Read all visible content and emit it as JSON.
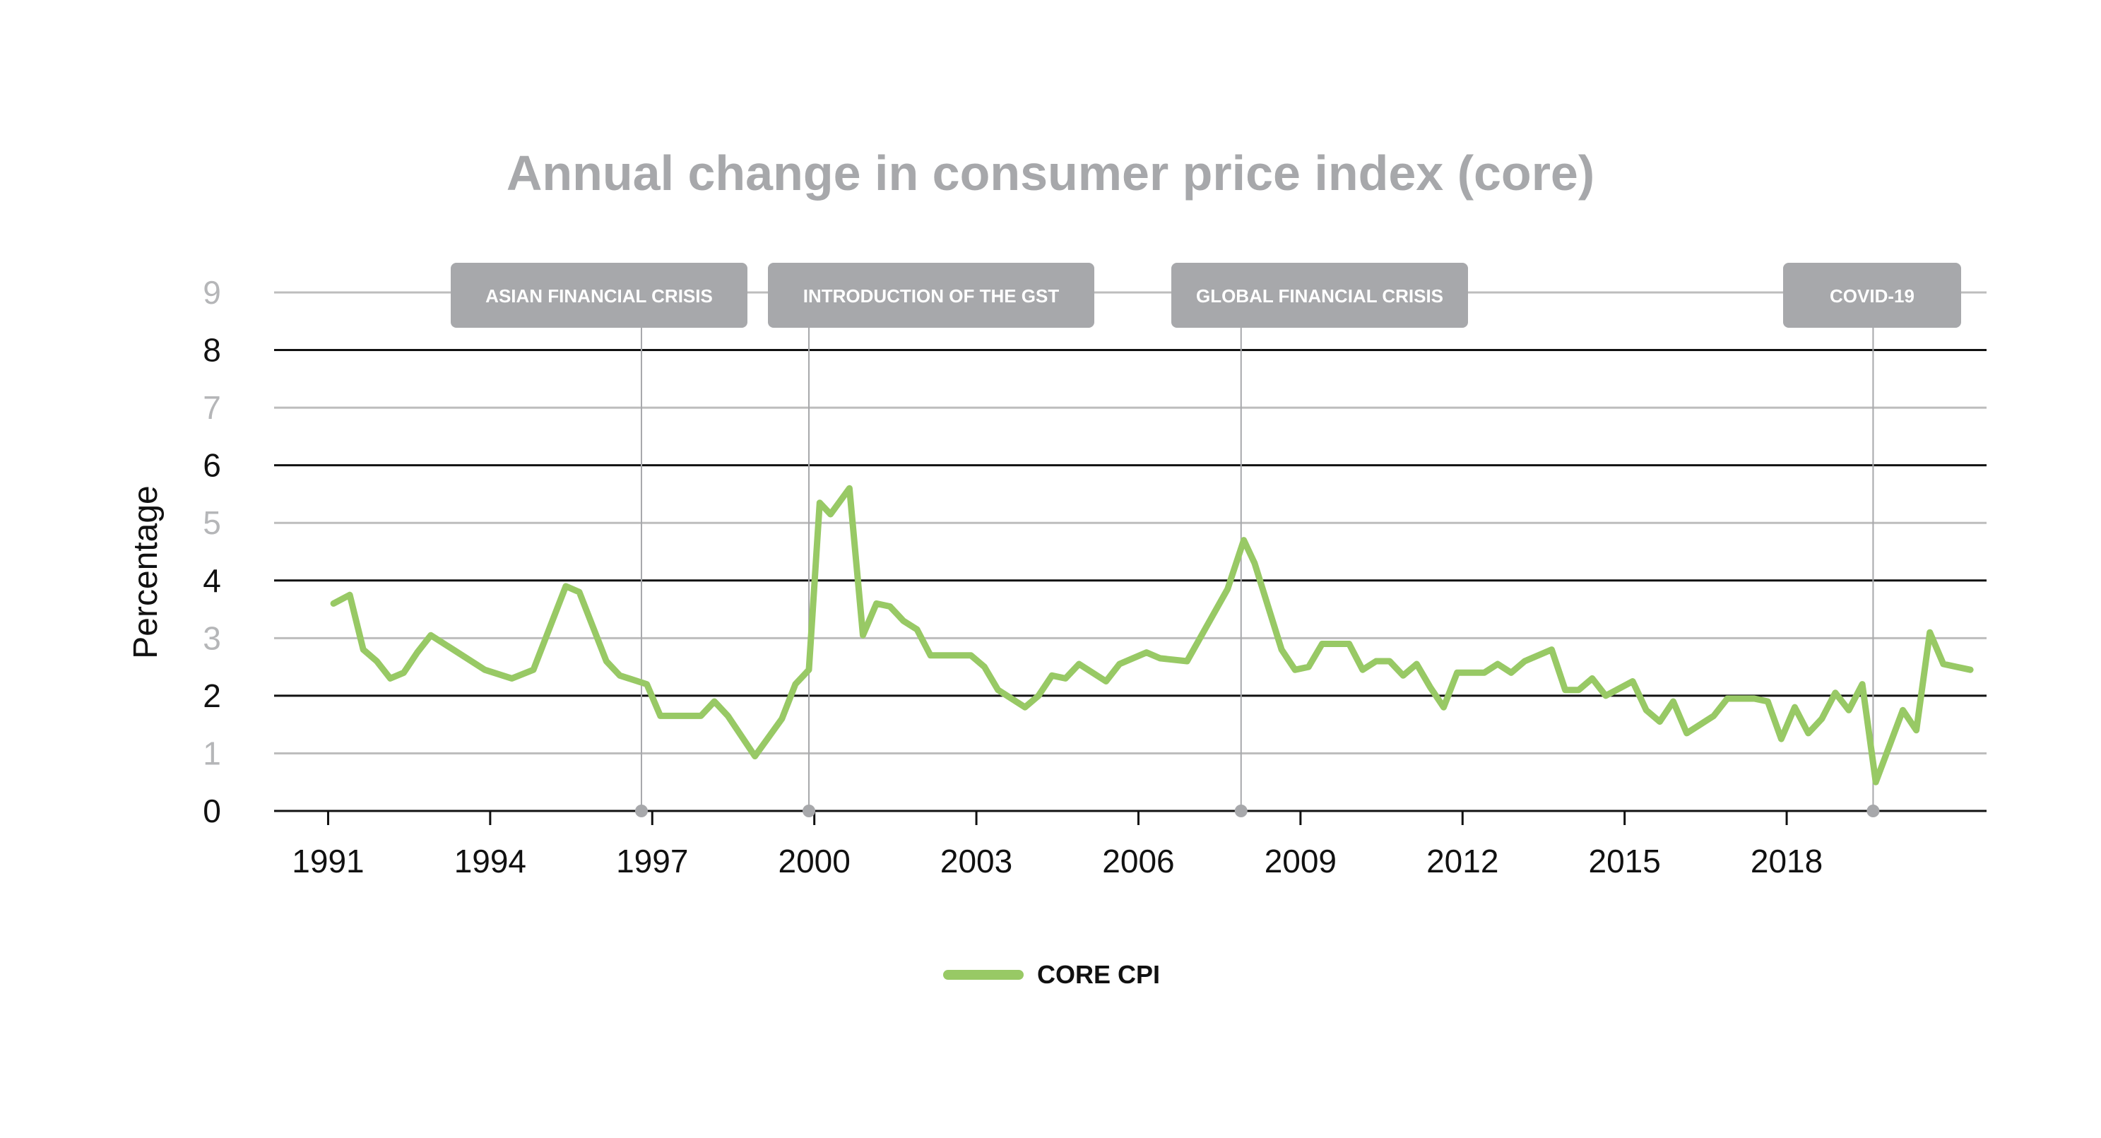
{
  "chart_data": {
    "type": "line",
    "title": "Annual change in consumer price index (core)",
    "xlabel": "",
    "ylabel": "Percentage",
    "xlim": [
      1990.0,
      2021.7
    ],
    "ylim": [
      0,
      9
    ],
    "yticks": [
      "0",
      "1",
      "2",
      "3",
      "4",
      "5",
      "6",
      "7",
      "8",
      "9"
    ],
    "xticks": [
      "1991",
      "1994",
      "1997",
      "2000",
      "2003",
      "2006",
      "2009",
      "2012",
      "2015",
      "2018"
    ],
    "grid": true,
    "legend": "bottom-center",
    "colors": {
      "line": "#98c965",
      "event": "#a7a8ab",
      "grid_dark": "#111111",
      "grid_light": "#bdbdbd"
    },
    "events": [
      {
        "label": "ASIAN FINANCIAL CRISIS",
        "x": 1996.8
      },
      {
        "label": "INTRODUCTION OF THE GST",
        "x": 1999.9
      },
      {
        "label": "GLOBAL FINANCIAL CRISIS",
        "x": 2007.9
      },
      {
        "label": "COVID-19",
        "x": 2019.6
      }
    ],
    "series": [
      {
        "name": "CORE CPI",
        "x": [
          1991.1,
          1991.4,
          1991.65,
          1991.9,
          1992.15,
          1992.4,
          1992.65,
          1992.9,
          1993.4,
          1993.9,
          1994.4,
          1994.8,
          1995.4,
          1995.65,
          1996.15,
          1996.4,
          1996.9,
          1997.15,
          1997.4,
          1997.9,
          1998.15,
          1998.4,
          1998.9,
          1999.4,
          1999.65,
          1999.9,
          2000.1,
          2000.3,
          2000.65,
          2000.9,
          2001.15,
          2001.4,
          2001.65,
          2001.9,
          2002.15,
          2002.9,
          2003.15,
          2003.4,
          2003.9,
          2004.15,
          2004.4,
          2004.65,
          2004.9,
          2005.4,
          2005.65,
          2006.15,
          2006.4,
          2006.9,
          2007.65,
          2007.95,
          2008.15,
          2008.4,
          2008.65,
          2008.9,
          2009.15,
          2009.4,
          2009.9,
          2010.15,
          2010.4,
          2010.65,
          2010.9,
          2011.15,
          2011.4,
          2011.65,
          2011.9,
          2012.4,
          2012.65,
          2012.9,
          2013.15,
          2013.65,
          2013.9,
          2014.15,
          2014.4,
          2014.65,
          2015.15,
          2015.4,
          2015.65,
          2015.9,
          2016.15,
          2016.65,
          2016.9,
          2017.4,
          2017.65,
          2017.9,
          2018.15,
          2018.4,
          2018.65,
          2018.9,
          2019.15,
          2019.4,
          2019.65,
          2020.15,
          2020.4,
          2020.65,
          2020.9,
          2021.15,
          2021.4
        ],
        "values": [
          3.6,
          3.75,
          2.8,
          2.6,
          2.3,
          2.4,
          2.75,
          3.05,
          2.75,
          2.45,
          2.3,
          2.45,
          3.9,
          3.8,
          2.6,
          2.35,
          2.2,
          1.65,
          1.65,
          1.65,
          1.9,
          1.65,
          0.95,
          1.6,
          2.2,
          2.45,
          5.35,
          5.15,
          5.6,
          3.05,
          3.6,
          3.55,
          3.3,
          3.15,
          2.7,
          2.7,
          2.5,
          2.1,
          1.8,
          2.0,
          2.35,
          2.3,
          2.55,
          2.25,
          2.55,
          2.75,
          2.65,
          2.6,
          3.85,
          4.7,
          4.3,
          3.55,
          2.8,
          2.45,
          2.5,
          2.9,
          2.9,
          2.45,
          2.6,
          2.6,
          2.35,
          2.55,
          2.15,
          1.8,
          2.4,
          2.4,
          2.55,
          2.4,
          2.6,
          2.8,
          2.1,
          2.1,
          2.3,
          2.0,
          2.25,
          1.75,
          1.55,
          1.9,
          1.35,
          1.65,
          1.95,
          1.95,
          1.9,
          1.25,
          1.8,
          1.35,
          1.6,
          2.05,
          1.75,
          2.2,
          0.5,
          1.75,
          1.4,
          3.1,
          2.55,
          2.5,
          2.45
        ]
      }
    ]
  }
}
